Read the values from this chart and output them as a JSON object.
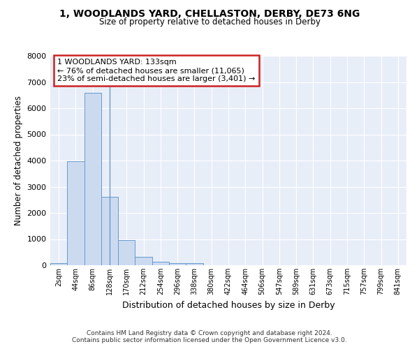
{
  "title_line1": "1, WOODLANDS YARD, CHELLASTON, DERBY, DE73 6NG",
  "title_line2": "Size of property relative to detached houses in Derby",
  "xlabel": "Distribution of detached houses by size in Derby",
  "ylabel": "Number of detached properties",
  "bar_labels": [
    "2sqm",
    "44sqm",
    "86sqm",
    "128sqm",
    "170sqm",
    "212sqm",
    "254sqm",
    "296sqm",
    "338sqm",
    "380sqm",
    "422sqm",
    "464sqm",
    "506sqm",
    "547sqm",
    "589sqm",
    "631sqm",
    "673sqm",
    "715sqm",
    "757sqm",
    "799sqm",
    "841sqm"
  ],
  "bar_values": [
    70,
    3980,
    6600,
    2620,
    950,
    310,
    130,
    90,
    70,
    0,
    0,
    0,
    0,
    0,
    0,
    0,
    0,
    0,
    0,
    0,
    0
  ],
  "bar_color": "#ccdaf0",
  "bar_edge_color": "#6699cc",
  "annotation_text": "1 WOODLANDS YARD: 133sqm\n← 76% of detached houses are smaller (11,065)\n23% of semi-detached houses are larger (3,401) →",
  "annotation_box_facecolor": "#ffffff",
  "annotation_box_edgecolor": "#cc2222",
  "ylim": [
    0,
    8000
  ],
  "yticks": [
    0,
    1000,
    2000,
    3000,
    4000,
    5000,
    6000,
    7000,
    8000
  ],
  "footer_text": "Contains HM Land Registry data © Crown copyright and database right 2024.\nContains public sector information licensed under the Open Government Licence v3.0.",
  "bg_color": "#ffffff",
  "plot_bg_color": "#e8eef8",
  "grid_color": "#ffffff",
  "vline_bar_index": 3,
  "vline_color": "#6699cc"
}
